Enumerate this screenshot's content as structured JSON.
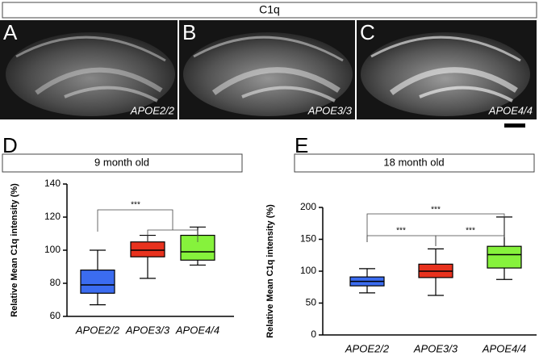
{
  "figure_title": "C1q",
  "image_panels": [
    {
      "letter": "A",
      "label": "APOE2/2"
    },
    {
      "letter": "B",
      "label": "APOE3/3"
    },
    {
      "letter": "C",
      "label": "APOE4/4"
    }
  ],
  "chart_data": [
    {
      "type": "box",
      "panel_label": "D",
      "title": "9 month old",
      "ylabel": "Relative Mean C1q intensity (%)",
      "categories": [
        "APOE2/2",
        "APOE3/3",
        "APOE4/4"
      ],
      "boxes": [
        {
          "min": 67,
          "q1": 74,
          "median": 79,
          "q3": 88,
          "max": 100,
          "color": "#3b6cf0"
        },
        {
          "min": 83,
          "q1": 96,
          "median": 100,
          "q3": 105,
          "max": 109,
          "color": "#e8321e"
        },
        {
          "min": 91,
          "q1": 94,
          "median": 99,
          "q3": 109,
          "max": 114,
          "color": "#86f23c"
        }
      ],
      "ylim": [
        60,
        140
      ],
      "yticks": [
        60,
        80,
        100,
        120,
        140
      ],
      "significance_labels": [
        "***"
      ]
    },
    {
      "type": "box",
      "panel_label": "E",
      "title": "18 month old",
      "ylabel": "Relative Mean C1q intensity (%)",
      "categories": [
        "APOE2/2",
        "APOE3/3",
        "APOE4/4"
      ],
      "boxes": [
        {
          "min": 66,
          "q1": 77,
          "median": 84,
          "q3": 91,
          "max": 104,
          "color": "#3b6cf0"
        },
        {
          "min": 62,
          "q1": 90,
          "median": 100,
          "q3": 111,
          "max": 135,
          "color": "#e8321e"
        },
        {
          "min": 87,
          "q1": 105,
          "median": 126,
          "q3": 139,
          "max": 185,
          "color": "#86f23c"
        }
      ],
      "ylim": [
        0,
        200
      ],
      "yticks": [
        0,
        50,
        100,
        150,
        200
      ],
      "significance_labels": [
        "***",
        "***",
        "***"
      ]
    }
  ]
}
